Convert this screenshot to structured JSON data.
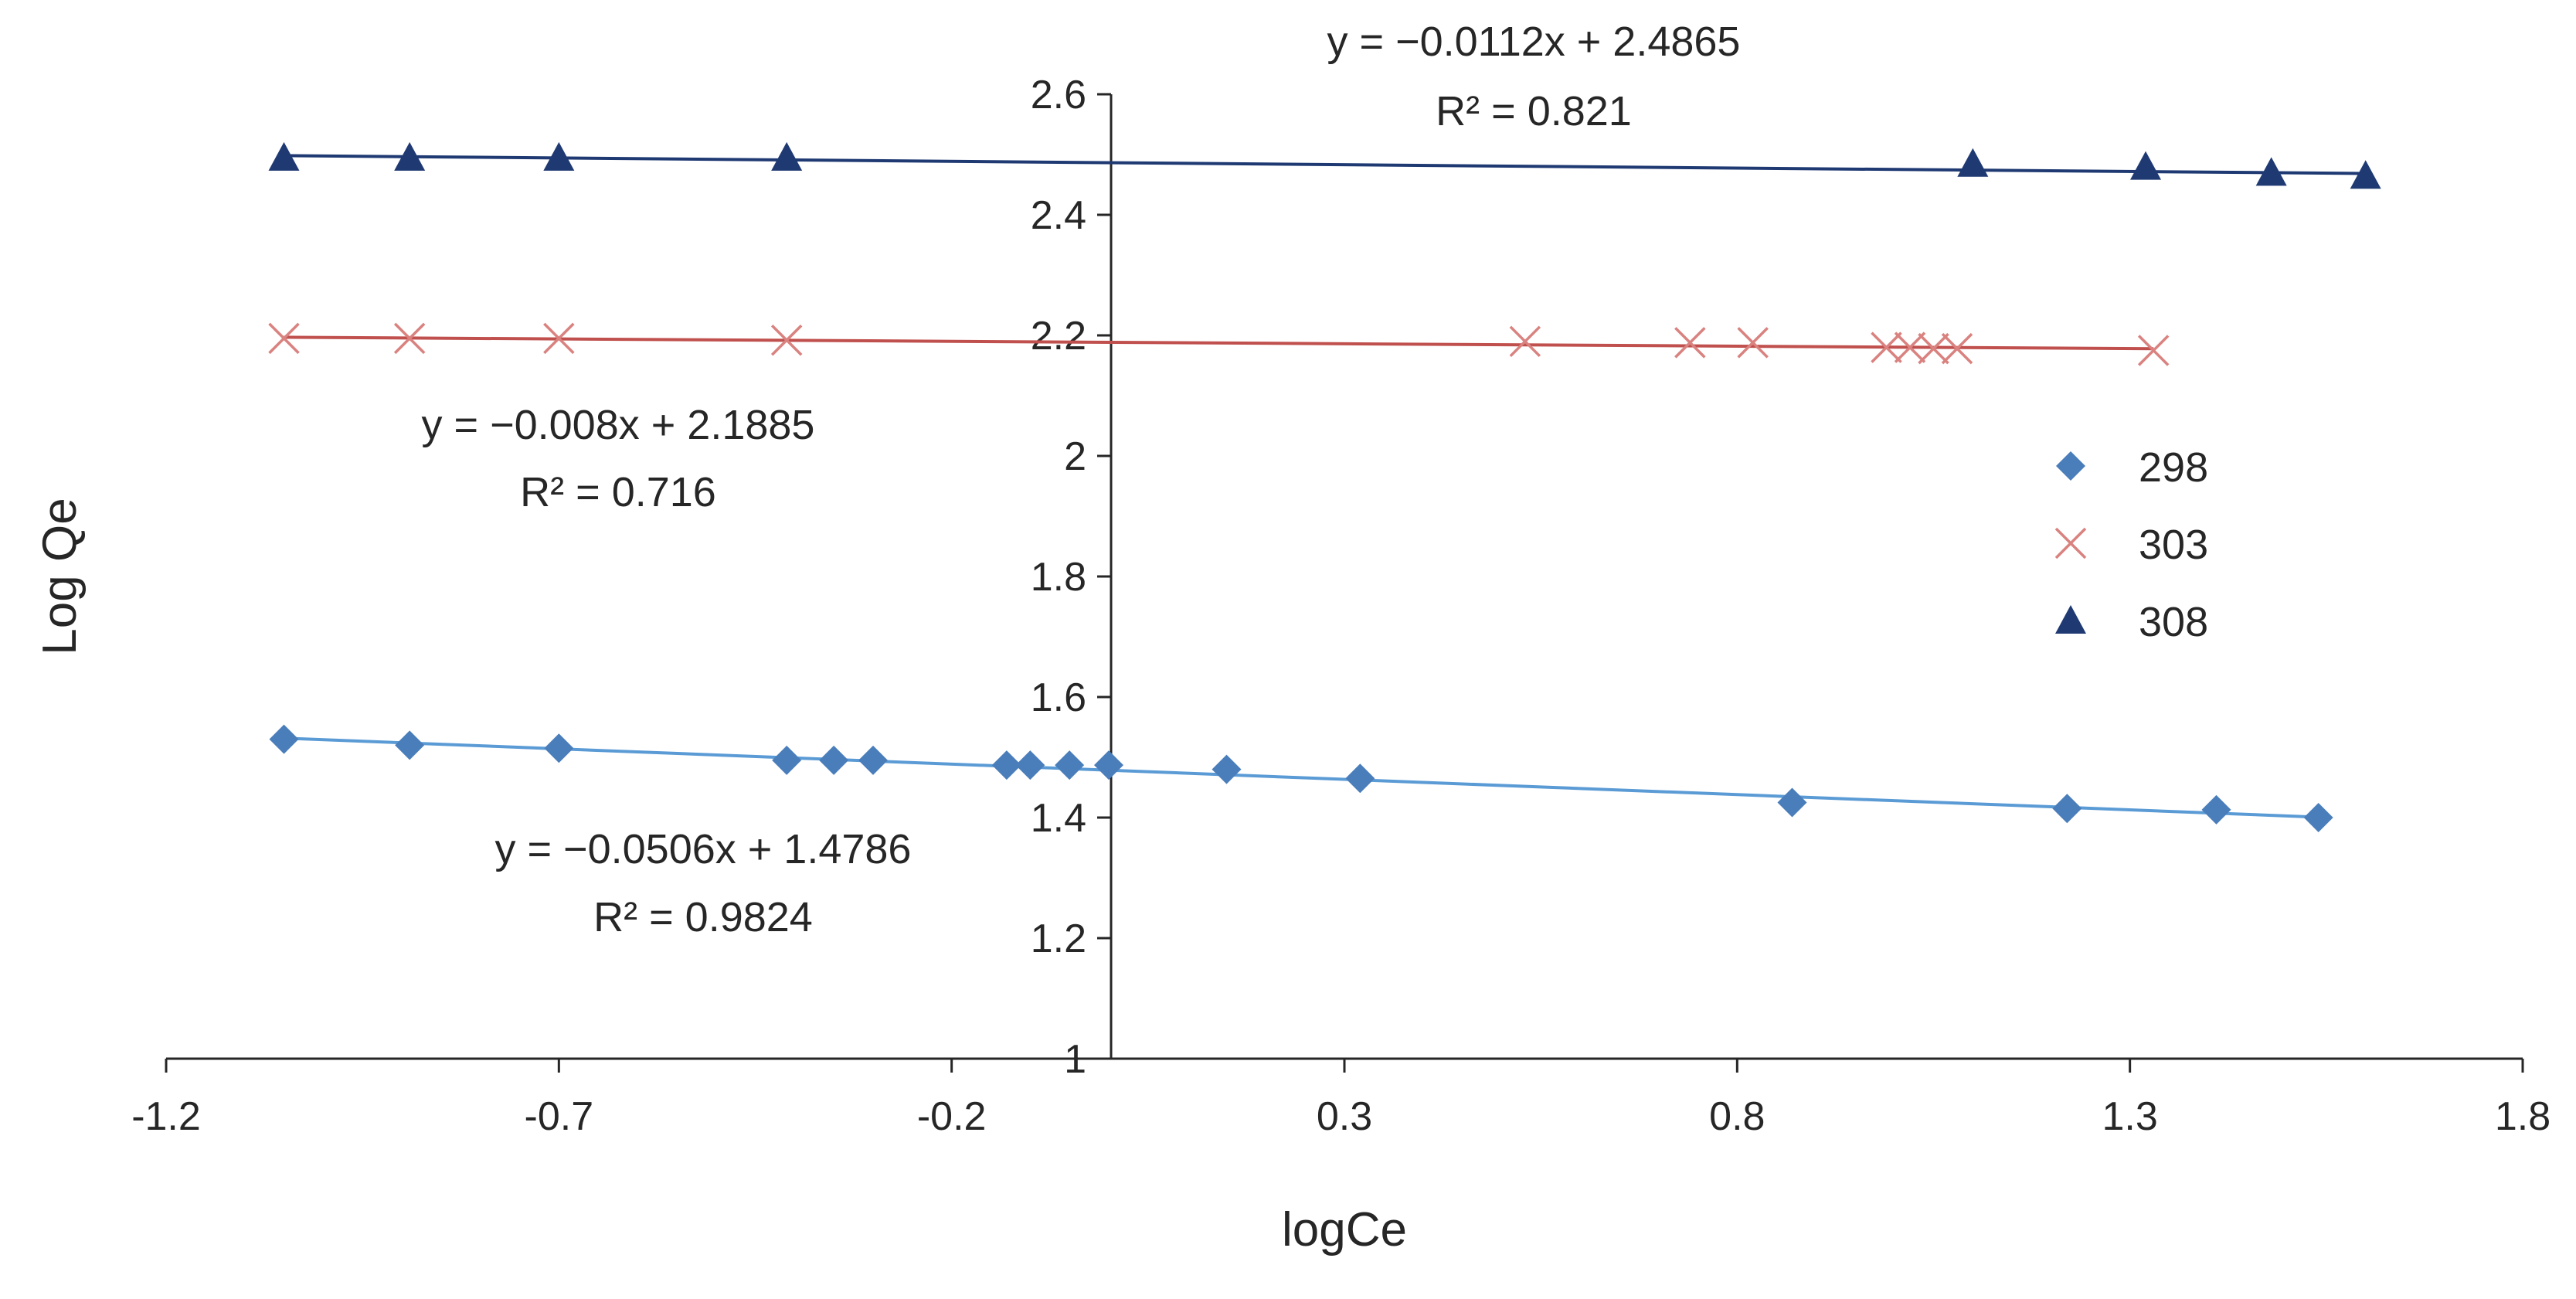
{
  "chart_data": {
    "type": "scatter",
    "title": "",
    "xlabel": "logCe",
    "ylabel": "Log Qe",
    "xlim": [
      -1.2,
      1.8
    ],
    "ylim": [
      1,
      2.6
    ],
    "x_ticks": [
      -1.2,
      -0.7,
      -0.2,
      0.3,
      0.8,
      1.3,
      1.8
    ],
    "x_tick_labels": [
      "-1.2",
      "-0.7",
      "-0.2",
      "0.3",
      "0.8",
      "1.3",
      "1.8"
    ],
    "y_ticks": [
      1,
      1.2,
      1.4,
      1.6,
      1.8,
      2,
      2.2,
      2.4,
      2.6
    ],
    "y_tick_labels": [
      "1",
      "1.2",
      "1.4",
      "1.6",
      "1.8",
      "2",
      "2.2",
      "2.4",
      "2.6"
    ],
    "grid": false,
    "legend_position": "right",
    "series": [
      {
        "name": "298",
        "marker": "diamond",
        "color": "#4a7ebb",
        "line_color": "#5b9bd5",
        "x": [
          -1.05,
          -0.89,
          -0.7,
          -0.41,
          -0.35,
          -0.3,
          -0.13,
          -0.1,
          -0.05,
          0.0,
          0.15,
          0.32,
          0.87,
          1.22,
          1.41,
          1.54
        ],
        "y": [
          1.53,
          1.52,
          1.515,
          1.495,
          1.495,
          1.495,
          1.487,
          1.487,
          1.487,
          1.487,
          1.48,
          1.465,
          1.425,
          1.415,
          1.413,
          1.4
        ],
        "trendline": {
          "slope": -0.0506,
          "intercept": 1.4786,
          "x_range": [
            -1.05,
            1.54
          ]
        },
        "equation": "y = −0.0506x  + 1.4786",
        "r2": "R² = 0.9824"
      },
      {
        "name": "303",
        "marker": "x",
        "color": "#d9827f",
        "line_color": "#c0504d",
        "x": [
          -1.05,
          -0.89,
          -0.7,
          -0.41,
          0.53,
          0.74,
          0.82,
          0.99,
          1.02,
          1.05,
          1.08,
          1.33
        ],
        "y": [
          2.195,
          2.195,
          2.195,
          2.192,
          2.19,
          2.188,
          2.188,
          2.18,
          2.18,
          2.178,
          2.178,
          2.175
        ],
        "trendline": {
          "slope": -0.008,
          "intercept": 2.1885,
          "x_range": [
            -1.05,
            1.33
          ]
        },
        "equation": "y = −0.008x  + 2.1885",
        "r2": "R² = 0.716"
      },
      {
        "name": "308",
        "marker": "triangle",
        "color": "#1f3a73",
        "line_color": "#1f3a73",
        "x": [
          -1.05,
          -0.89,
          -0.7,
          -0.41,
          1.1,
          1.32,
          1.48,
          1.6
        ],
        "y": [
          2.495,
          2.495,
          2.495,
          2.495,
          2.485,
          2.48,
          2.47,
          2.465
        ],
        "trendline": {
          "slope": -0.0112,
          "intercept": 2.4865,
          "x_range": [
            -1.05,
            1.6
          ]
        },
        "equation": "y = −0.0112x  + 2.4865",
        "r2": "R² = 0.821"
      }
    ]
  }
}
